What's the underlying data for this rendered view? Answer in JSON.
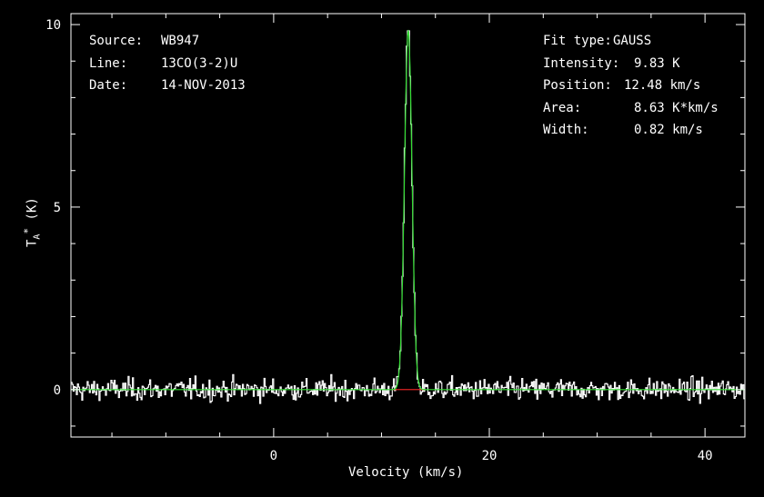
{
  "info_left": {
    "source_label": "Source:",
    "source_value": "WB947",
    "line_label": "Line:",
    "line_value": "13CO(3-2)U",
    "date_label": "Date:",
    "date_value": "14-NOV-2013"
  },
  "info_right": {
    "fit_label": "Fit type:",
    "fit_value": "GAUSS",
    "intensity_label": "Intensity:",
    "intensity_value": "9.83 K",
    "position_label": "Position:",
    "position_value": "12.48 km/s",
    "area_label": "Area:",
    "area_value": "8.63 K*km/s",
    "width_label": "Width:",
    "width_value": "0.82 km/s"
  },
  "chart_data": {
    "type": "line",
    "xlabel": "Velocity (km/s)",
    "ylabel": "T_A* (K)",
    "xlim": [
      -18.8,
      43.7
    ],
    "ylim": [
      -1.3,
      10.3
    ],
    "x_ticks": [
      0,
      20,
      40
    ],
    "y_ticks": [
      0,
      5,
      10
    ],
    "x_tick_labels": [
      "0",
      "20",
      "40"
    ],
    "y_tick_labels": [
      "0",
      "5",
      "10"
    ],
    "series": [
      {
        "role": "observed-spectrum",
        "color": "#ffffff",
        "channel_start": -18.8,
        "channel_step": 0.1,
        "rms_noise": 0.15,
        "peak_x": 12.48,
        "peak_y": 9.83
      },
      {
        "role": "gaussian-fit",
        "color": "#33dd33",
        "amplitude": 9.83,
        "center": 12.48,
        "fwhm": 0.82
      },
      {
        "role": "fit-window-baseline",
        "color": "#dd2222",
        "x_range": [
          11.0,
          14.0
        ],
        "y": 0
      }
    ]
  }
}
